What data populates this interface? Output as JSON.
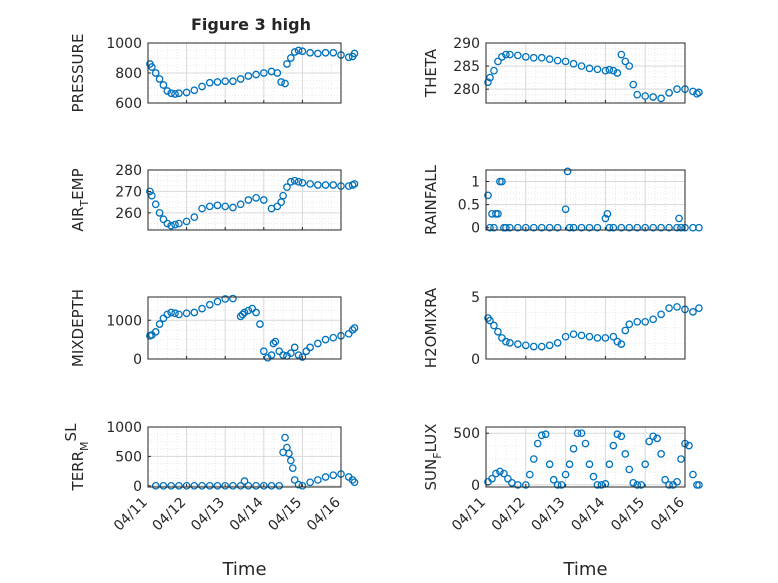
{
  "figure": {
    "title": "Figure 3 high"
  },
  "style": {
    "marker_color": "#0072BD",
    "axis_color": "#262626",
    "grid_color": "#d9d9d9"
  },
  "chart_data": [
    {
      "type": "scatter",
      "ylabel": "PRESSURE",
      "xlabel": "",
      "xlim": [
        "04/11",
        "04/16"
      ],
      "ylim": [
        600,
        1000
      ],
      "yticks": [
        600,
        800,
        1000
      ],
      "grid": true,
      "x": [
        0.05,
        0.1,
        0.2,
        0.3,
        0.4,
        0.5,
        0.6,
        0.7,
        0.8,
        1.0,
        1.2,
        1.4,
        1.6,
        1.8,
        2.0,
        2.2,
        2.4,
        2.6,
        2.8,
        3.0,
        3.2,
        3.35,
        3.45,
        3.55,
        3.6,
        3.7,
        3.8,
        3.9,
        4.0,
        4.2,
        4.4,
        4.6,
        4.8,
        5.0,
        5.2,
        5.3,
        5.35
      ],
      "y": [
        860,
        840,
        800,
        760,
        720,
        680,
        665,
        660,
        665,
        670,
        685,
        710,
        735,
        740,
        745,
        745,
        760,
        780,
        790,
        800,
        810,
        800,
        740,
        730,
        860,
        900,
        940,
        950,
        945,
        935,
        930,
        935,
        935,
        920,
        905,
        910,
        930
      ]
    },
    {
      "type": "scatter",
      "ylabel": "THETA",
      "xlabel": "",
      "xlim": [
        "04/11",
        "04/16"
      ],
      "ylim": [
        277,
        290
      ],
      "yticks": [
        280,
        285,
        290
      ],
      "grid": true,
      "x": [
        0.05,
        0.1,
        0.2,
        0.3,
        0.4,
        0.5,
        0.6,
        0.8,
        1.0,
        1.2,
        1.4,
        1.6,
        1.8,
        2.0,
        2.2,
        2.4,
        2.6,
        2.8,
        3.0,
        3.1,
        3.2,
        3.3,
        3.4,
        3.5,
        3.6,
        3.7,
        3.8,
        4.0,
        4.2,
        4.4,
        4.6,
        4.8,
        5.0,
        5.2,
        5.3,
        5.35
      ],
      "y": [
        281.5,
        282.5,
        284,
        286,
        287,
        287.5,
        287.5,
        287.3,
        287,
        286.8,
        286.8,
        286.5,
        286.2,
        286,
        285.5,
        285,
        284.5,
        284.3,
        284,
        284.2,
        284,
        283.5,
        287.5,
        286,
        285,
        281,
        278.8,
        278.5,
        278.3,
        278,
        279.2,
        280,
        280,
        279.5,
        279,
        279.3
      ]
    },
    {
      "type": "scatter",
      "ylabel": "AIR_TEMP",
      "xlabel": "",
      "xlim": [
        "04/11",
        "04/16"
      ],
      "ylim": [
        252,
        280
      ],
      "yticks": [
        260,
        270,
        280
      ],
      "grid": true,
      "x": [
        0.05,
        0.1,
        0.2,
        0.3,
        0.4,
        0.5,
        0.6,
        0.7,
        0.8,
        1.0,
        1.2,
        1.4,
        1.6,
        1.8,
        2.0,
        2.2,
        2.4,
        2.6,
        2.8,
        3.0,
        3.2,
        3.35,
        3.45,
        3.5,
        3.6,
        3.7,
        3.8,
        3.9,
        4.0,
        4.2,
        4.4,
        4.6,
        4.8,
        5.0,
        5.2,
        5.3,
        5.35
      ],
      "y": [
        270,
        268,
        264,
        260,
        257,
        255,
        254,
        254.5,
        255,
        256,
        258,
        262,
        263,
        263.5,
        263,
        262.5,
        264,
        266,
        267,
        266,
        262,
        263,
        265,
        268,
        272,
        274.5,
        275,
        274.5,
        274,
        273.5,
        273,
        273,
        273,
        272.5,
        272.5,
        273,
        273.5
      ]
    },
    {
      "type": "scatter",
      "ylabel": "RAINFALL",
      "xlabel": "",
      "xlim": [
        "04/11",
        "04/16"
      ],
      "ylim": [
        -0.05,
        1.25
      ],
      "yticks": [
        0,
        0.5,
        1
      ],
      "grid": true,
      "x": [
        0.05,
        0.1,
        0.15,
        0.2,
        0.25,
        0.3,
        0.35,
        0.4,
        0.45,
        0.5,
        0.6,
        0.8,
        1.0,
        1.2,
        1.4,
        1.6,
        1.8,
        2.0,
        2.05,
        2.1,
        2.2,
        2.4,
        2.6,
        2.8,
        3.0,
        3.05,
        3.1,
        3.2,
        3.4,
        3.6,
        3.8,
        4.0,
        4.2,
        4.4,
        4.6,
        4.8,
        4.85,
        4.9,
        5.0,
        5.2,
        5.35
      ],
      "y": [
        0.7,
        0,
        0.3,
        0,
        0.3,
        0.3,
        1.0,
        1.0,
        0,
        0,
        0,
        0,
        0,
        0,
        0,
        0,
        0,
        0.4,
        1.22,
        0,
        0,
        0,
        0,
        0,
        0.2,
        0.3,
        0,
        0,
        0,
        0,
        0,
        0,
        0,
        0,
        0,
        0,
        0.2,
        0,
        0,
        0,
        0
      ]
    },
    {
      "type": "scatter",
      "ylabel": "MIXDEPTH",
      "xlabel": "",
      "xlim": [
        "04/11",
        "04/16"
      ],
      "ylim": [
        0,
        1600
      ],
      "yticks": [
        0,
        1000
      ],
      "grid": true,
      "x": [
        0.05,
        0.1,
        0.2,
        0.3,
        0.4,
        0.5,
        0.6,
        0.7,
        0.8,
        1.0,
        1.2,
        1.4,
        1.6,
        1.8,
        2.0,
        2.2,
        2.4,
        2.45,
        2.5,
        2.6,
        2.7,
        2.8,
        2.9,
        3.0,
        3.1,
        3.2,
        3.25,
        3.3,
        3.4,
        3.5,
        3.6,
        3.7,
        3.8,
        3.9,
        4.0,
        4.1,
        4.2,
        4.4,
        4.6,
        4.8,
        5.0,
        5.2,
        5.3,
        5.35
      ],
      "y": [
        600,
        620,
        700,
        900,
        1050,
        1150,
        1200,
        1180,
        1150,
        1180,
        1200,
        1300,
        1400,
        1480,
        1550,
        1560,
        1100,
        1150,
        1200,
        1250,
        1300,
        1200,
        900,
        200,
        30,
        100,
        400,
        450,
        200,
        100,
        80,
        150,
        300,
        100,
        50,
        200,
        300,
        400,
        500,
        550,
        600,
        650,
        750,
        800
      ]
    },
    {
      "type": "scatter",
      "ylabel": "H2OMIXRA",
      "xlabel": "",
      "xlim": [
        "04/11",
        "04/16"
      ],
      "ylim": [
        0,
        5
      ],
      "yticks": [
        0,
        5
      ],
      "grid": true,
      "x": [
        0.05,
        0.1,
        0.2,
        0.3,
        0.4,
        0.5,
        0.6,
        0.8,
        1.0,
        1.2,
        1.4,
        1.6,
        1.8,
        2.0,
        2.2,
        2.4,
        2.6,
        2.8,
        3.0,
        3.2,
        3.3,
        3.4,
        3.5,
        3.6,
        3.8,
        4.0,
        4.2,
        4.4,
        4.6,
        4.8,
        5.0,
        5.2,
        5.35
      ],
      "y": [
        3.3,
        3.1,
        2.7,
        2.2,
        1.7,
        1.4,
        1.3,
        1.2,
        1.1,
        1.0,
        1.0,
        1.1,
        1.3,
        1.8,
        2.0,
        1.9,
        1.8,
        1.7,
        1.7,
        1.8,
        1.4,
        1.2,
        2.3,
        2.8,
        3.0,
        3.0,
        3.2,
        3.6,
        4.1,
        4.2,
        4.0,
        3.8,
        4.1
      ]
    },
    {
      "type": "scatter",
      "ylabel": "TERR_MSL",
      "xlabel": "Time",
      "xlim": [
        "04/11",
        "04/16"
      ],
      "ylim": [
        -20,
        1000
      ],
      "yticks": [
        0,
        500,
        1000
      ],
      "grid": true,
      "xticks": [
        "04/11",
        "04/12",
        "04/13",
        "04/14",
        "04/15",
        "04/16"
      ],
      "x": [
        0.2,
        0.4,
        0.6,
        0.8,
        1.0,
        1.2,
        1.4,
        1.6,
        1.8,
        2.0,
        2.2,
        2.4,
        2.5,
        2.6,
        2.8,
        3.0,
        3.2,
        3.4,
        3.5,
        3.55,
        3.6,
        3.65,
        3.7,
        3.75,
        3.8,
        3.9,
        4.0,
        4.2,
        4.4,
        4.6,
        4.8,
        5.0,
        5.2,
        5.3,
        5.35
      ],
      "y": [
        0,
        0,
        0,
        0,
        0,
        0,
        0,
        0,
        0,
        0,
        0,
        0,
        80,
        0,
        0,
        0,
        0,
        0,
        570,
        820,
        650,
        550,
        430,
        300,
        100,
        20,
        0,
        60,
        100,
        150,
        180,
        200,
        150,
        100,
        60
      ]
    },
    {
      "type": "scatter",
      "ylabel": "SUN_FLUX",
      "xlabel": "Time",
      "xlim": [
        "04/11",
        "04/16"
      ],
      "ylim": [
        -20,
        560
      ],
      "yticks": [
        0,
        500
      ],
      "grid": true,
      "xticks": [
        "04/11",
        "04/12",
        "04/13",
        "04/14",
        "04/15",
        "04/16"
      ],
      "x": [
        0.05,
        0.15,
        0.25,
        0.35,
        0.45,
        0.55,
        0.65,
        0.8,
        1.0,
        1.1,
        1.2,
        1.3,
        1.4,
        1.5,
        1.6,
        1.7,
        1.8,
        1.9,
        2.0,
        2.1,
        2.2,
        2.3,
        2.4,
        2.5,
        2.6,
        2.7,
        2.8,
        2.9,
        3.0,
        3.1,
        3.2,
        3.3,
        3.4,
        3.5,
        3.6,
        3.7,
        3.8,
        3.9,
        4.0,
        4.1,
        4.2,
        4.3,
        4.4,
        4.5,
        4.6,
        4.7,
        4.8,
        4.9,
        5.0,
        5.1,
        5.2,
        5.3,
        5.35
      ],
      "y": [
        30,
        60,
        110,
        130,
        110,
        60,
        20,
        0,
        0,
        100,
        250,
        400,
        480,
        490,
        200,
        50,
        0,
        0,
        100,
        200,
        350,
        500,
        500,
        400,
        200,
        80,
        0,
        0,
        10,
        200,
        380,
        490,
        470,
        300,
        150,
        20,
        0,
        0,
        200,
        420,
        470,
        450,
        300,
        50,
        0,
        0,
        30,
        250,
        400,
        380,
        100,
        0,
        0
      ]
    }
  ]
}
